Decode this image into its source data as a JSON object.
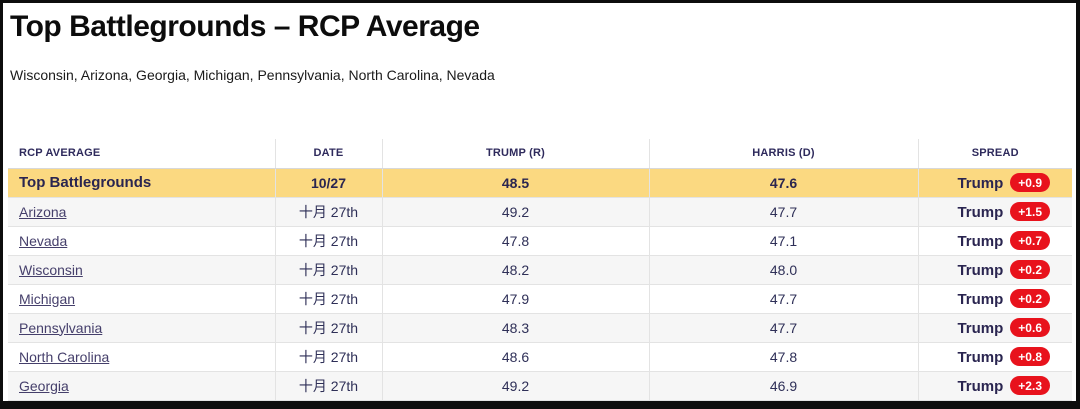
{
  "page": {
    "title": "Top Battlegrounds – RCP Average",
    "subtitle": "Wisconsin, Arizona, Georgia, Michigan, Pennsylvania, North Carolina, Nevada"
  },
  "chart_data": {
    "type": "table",
    "title": "Top Battlegrounds – RCP Average",
    "subtitle": "Wisconsin, Arizona, Georgia, Michigan, Pennsylvania, North Carolina, Nevada",
    "columns": [
      "RCP AVERAGE",
      "DATE",
      "TRUMP (R)",
      "HARRIS (D)",
      "SPREAD"
    ],
    "summary_row": {
      "name": "Top Battlegrounds",
      "date": "10/27",
      "trump": "48.5",
      "harris": "47.6",
      "spread_label": "Trump",
      "spread_value": "+0.9"
    },
    "rows": [
      {
        "name": "Arizona",
        "date": "十月 27th",
        "trump": "49.2",
        "harris": "47.7",
        "spread_label": "Trump",
        "spread_value": "+1.5"
      },
      {
        "name": "Nevada",
        "date": "十月 27th",
        "trump": "47.8",
        "harris": "47.1",
        "spread_label": "Trump",
        "spread_value": "+0.7"
      },
      {
        "name": "Wisconsin",
        "date": "十月 27th",
        "trump": "48.2",
        "harris": "48.0",
        "spread_label": "Trump",
        "spread_value": "+0.2"
      },
      {
        "name": "Michigan",
        "date": "十月 27th",
        "trump": "47.9",
        "harris": "47.7",
        "spread_label": "Trump",
        "spread_value": "+0.2"
      },
      {
        "name": "Pennsylvania",
        "date": "十月 27th",
        "trump": "48.3",
        "harris": "47.7",
        "spread_label": "Trump",
        "spread_value": "+0.6"
      },
      {
        "name": "North Carolina",
        "date": "十月 27th",
        "trump": "48.6",
        "harris": "47.8",
        "spread_label": "Trump",
        "spread_value": "+0.8"
      },
      {
        "name": "Georgia",
        "date": "十月 27th",
        "trump": "49.2",
        "harris": "46.9",
        "spread_label": "Trump",
        "spread_value": "+2.3"
      }
    ]
  },
  "colors": {
    "highlight_row_bg": "#fbd981",
    "alt_row_bg": "#f6f6f6",
    "header_text": "#2e2a5c",
    "link_text": "#453f6b",
    "value_text": "#2e2f57",
    "spread_badge_bg": "#e8121c",
    "spread_badge_text": "#ffffff",
    "frame_border": "#0d0d0d"
  }
}
